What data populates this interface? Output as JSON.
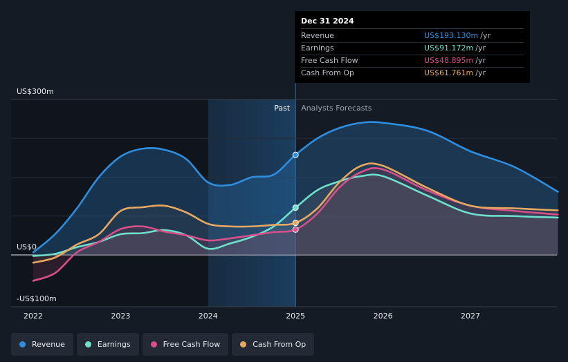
{
  "tooltip": {
    "date": "Dec 31 2024",
    "rows": [
      {
        "label": "Revenue",
        "value": "US$193.130m",
        "unit": "/yr",
        "color": "#2e8fe0"
      },
      {
        "label": "Earnings",
        "value": "US$91.172m",
        "unit": "/yr",
        "color": "#6fe0cc"
      },
      {
        "label": "Free Cash Flow",
        "value": "US$48.895m",
        "unit": "/yr",
        "color": "#d94f8a"
      },
      {
        "label": "Cash From Op",
        "value": "US$61.761m",
        "unit": "/yr",
        "color": "#e8a860"
      }
    ]
  },
  "labels": {
    "past": "Past",
    "forecast": "Analysts Forecasts"
  },
  "legend": [
    {
      "label": "Revenue",
      "color": "#2e8fe0"
    },
    {
      "label": "Earnings",
      "color": "#6fe0cc"
    },
    {
      "label": "Free Cash Flow",
      "color": "#d94f8a"
    },
    {
      "label": "Cash From Op",
      "color": "#e8a860"
    }
  ],
  "chart_data": {
    "type": "line",
    "title": "",
    "xlabel": "",
    "ylabel": "",
    "ylim": [
      -100,
      300
    ],
    "y_ticks": [
      {
        "value": 300,
        "label": "US$300m"
      },
      {
        "value": 0,
        "label": "US$0"
      },
      {
        "value": -100,
        "label": "-US$100m"
      }
    ],
    "x_ticks": [
      {
        "value": 2022,
        "label": "2022"
      },
      {
        "value": 2023,
        "label": "2023"
      },
      {
        "value": 2024,
        "label": "2024"
      },
      {
        "value": 2025,
        "label": "2025"
      },
      {
        "value": 2026,
        "label": "2026"
      },
      {
        "value": 2027,
        "label": "2027"
      }
    ],
    "xlim": [
      2021.75,
      2028.0
    ],
    "past_start": 2024.0,
    "forecast_start": 2025.0,
    "series": [
      {
        "name": "Revenue",
        "color": "#2e8fe0",
        "points": [
          [
            2022.0,
            5
          ],
          [
            2022.25,
            40
          ],
          [
            2022.5,
            90
          ],
          [
            2022.75,
            150
          ],
          [
            2023.0,
            190
          ],
          [
            2023.25,
            205
          ],
          [
            2023.5,
            203
          ],
          [
            2023.75,
            185
          ],
          [
            2024.0,
            140
          ],
          [
            2024.25,
            135
          ],
          [
            2024.5,
            150
          ],
          [
            2024.75,
            155
          ],
          [
            2025.0,
            193.13
          ],
          [
            2025.25,
            225
          ],
          [
            2025.5,
            245
          ],
          [
            2025.75,
            255
          ],
          [
            2026.0,
            255
          ],
          [
            2026.5,
            240
          ],
          [
            2027.0,
            200
          ],
          [
            2027.5,
            170
          ],
          [
            2028.0,
            122
          ]
        ]
      },
      {
        "name": "Earnings",
        "color": "#6fe0cc",
        "points": [
          [
            2022.0,
            -2
          ],
          [
            2022.25,
            2
          ],
          [
            2022.5,
            15
          ],
          [
            2022.75,
            25
          ],
          [
            2023.0,
            40
          ],
          [
            2023.25,
            42
          ],
          [
            2023.5,
            48
          ],
          [
            2023.75,
            38
          ],
          [
            2024.0,
            12
          ],
          [
            2024.25,
            22
          ],
          [
            2024.5,
            35
          ],
          [
            2024.75,
            55
          ],
          [
            2025.0,
            91.172
          ],
          [
            2025.25,
            125
          ],
          [
            2025.5,
            142
          ],
          [
            2025.75,
            152
          ],
          [
            2026.0,
            152
          ],
          [
            2026.5,
            115
          ],
          [
            2027.0,
            80
          ],
          [
            2027.5,
            75
          ],
          [
            2028.0,
            72
          ]
        ]
      },
      {
        "name": "Free Cash Flow",
        "color": "#d94f8a",
        "points": [
          [
            2022.0,
            -50
          ],
          [
            2022.25,
            -35
          ],
          [
            2022.5,
            5
          ],
          [
            2022.75,
            25
          ],
          [
            2023.0,
            50
          ],
          [
            2023.25,
            55
          ],
          [
            2023.5,
            45
          ],
          [
            2023.75,
            38
          ],
          [
            2024.0,
            28
          ],
          [
            2024.25,
            32
          ],
          [
            2024.5,
            38
          ],
          [
            2024.75,
            44
          ],
          [
            2025.0,
            48.895
          ],
          [
            2025.25,
            80
          ],
          [
            2025.5,
            130
          ],
          [
            2025.75,
            160
          ],
          [
            2026.0,
            165
          ],
          [
            2026.5,
            125
          ],
          [
            2027.0,
            95
          ],
          [
            2027.5,
            85
          ],
          [
            2028.0,
            78
          ]
        ]
      },
      {
        "name": "Cash From Op",
        "color": "#e8a860",
        "points": [
          [
            2022.0,
            -15
          ],
          [
            2022.25,
            -5
          ],
          [
            2022.5,
            20
          ],
          [
            2022.75,
            40
          ],
          [
            2023.0,
            85
          ],
          [
            2023.25,
            92
          ],
          [
            2023.5,
            95
          ],
          [
            2023.75,
            82
          ],
          [
            2024.0,
            60
          ],
          [
            2024.25,
            55
          ],
          [
            2024.5,
            55
          ],
          [
            2024.75,
            58
          ],
          [
            2025.0,
            61.761
          ],
          [
            2025.25,
            90
          ],
          [
            2025.5,
            140
          ],
          [
            2025.75,
            172
          ],
          [
            2026.0,
            172
          ],
          [
            2026.5,
            130
          ],
          [
            2027.0,
            95
          ],
          [
            2027.5,
            90
          ],
          [
            2028.0,
            86
          ]
        ]
      }
    ]
  }
}
